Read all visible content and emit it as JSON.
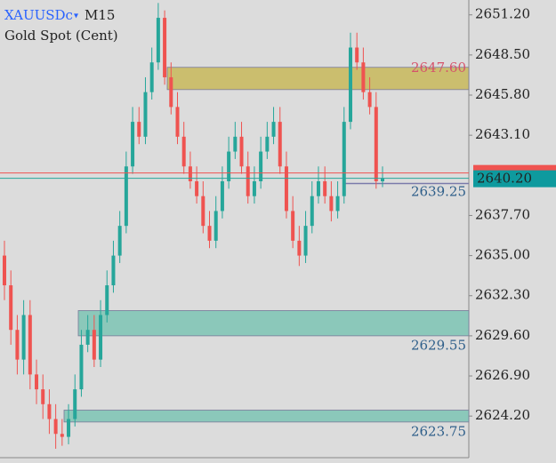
{
  "chart_data": {
    "type": "candlestick",
    "symbol": "XAUUSDc",
    "timeframe": "M15",
    "description": "Gold Spot (Cent)",
    "up_color": "#26a69a",
    "down_color": "#ef5350",
    "ylim": [
      2621.4,
      2652.2
    ],
    "yticks": [
      {
        "value": 2651.2,
        "label": "2651.20"
      },
      {
        "value": 2648.5,
        "label": "2648.50"
      },
      {
        "value": 2645.8,
        "label": "2645.80"
      },
      {
        "value": 2643.1,
        "label": "2643.10"
      },
      {
        "value": 2637.7,
        "label": "2637.70"
      },
      {
        "value": 2635,
        "label": "2635.00"
      },
      {
        "value": 2632.3,
        "label": "2632.30"
      },
      {
        "value": 2629.6,
        "label": "2629.60"
      },
      {
        "value": 2626.9,
        "label": "2626.90"
      },
      {
        "value": 2624.2,
        "label": "2624.20"
      }
    ],
    "open": [
      2635,
      2633,
      2630,
      2628,
      2631,
      2627,
      2626,
      2625,
      2624,
      2623,
      2622.8,
      2624,
      2626,
      2629,
      2630,
      2628,
      2631,
      2633,
      2635,
      2637,
      2641,
      2644,
      2643,
      2646,
      2648,
      2651,
      2647,
      2645,
      2643,
      2641,
      2640,
      2639,
      2637,
      2636,
      2638,
      2640,
      2642,
      2643,
      2641,
      2639,
      2640,
      2642,
      2643,
      2644,
      2641,
      2638,
      2636,
      2635,
      2637,
      2639,
      2640,
      2639,
      2638,
      2639,
      2644,
      2649,
      2648,
      2646,
      2645,
      2640
    ],
    "close": [
      2633,
      2630,
      2628,
      2631,
      2627,
      2626,
      2625,
      2624,
      2623,
      2622.8,
      2624,
      2626,
      2629,
      2630,
      2628,
      2631,
      2633,
      2635,
      2637,
      2641,
      2644,
      2643,
      2646,
      2648,
      2651,
      2647,
      2645,
      2643,
      2641,
      2640,
      2639,
      2637,
      2636,
      2638,
      2640,
      2642,
      2643,
      2641,
      2639,
      2640,
      2642,
      2643,
      2644,
      2641,
      2638,
      2636,
      2635,
      2637,
      2639,
      2640,
      2639,
      2638,
      2639,
      2644,
      2649,
      2648,
      2646,
      2645,
      2640,
      2640.2
    ],
    "high": [
      2636,
      2634,
      2631,
      2632,
      2632,
      2628,
      2627,
      2626,
      2625,
      2624,
      2625,
      2627,
      2630,
      2631,
      2631,
      2632,
      2634,
      2636,
      2638,
      2642,
      2645,
      2645,
      2647,
      2649,
      2652,
      2651.5,
      2648,
      2646,
      2644,
      2642,
      2641,
      2640,
      2638,
      2639,
      2641,
      2643,
      2644,
      2644,
      2642,
      2641,
      2643,
      2644,
      2645,
      2645,
      2642,
      2639,
      2637,
      2638,
      2640,
      2641,
      2641,
      2640,
      2640,
      2645,
      2650,
      2650,
      2649,
      2647,
      2646,
      2641
    ],
    "low": [
      2632,
      2629,
      2627,
      2627,
      2626,
      2625,
      2624,
      2623,
      2622,
      2622.2,
      2622.3,
      2623.5,
      2625.5,
      2628.5,
      2627.5,
      2627.5,
      2630.5,
      2632.5,
      2634.5,
      2636.5,
      2640.5,
      2642.5,
      2642.5,
      2645.5,
      2647.5,
      2646.5,
      2644.5,
      2642.5,
      2640.5,
      2639.5,
      2638.5,
      2636.5,
      2635.5,
      2635.5,
      2637.5,
      2639.5,
      2641.5,
      2640.5,
      2638.5,
      2638.5,
      2639.5,
      2641.5,
      2642.5,
      2640.5,
      2637.5,
      2635.5,
      2634.3,
      2634.5,
      2636.5,
      2638.5,
      2638.5,
      2637.3,
      2637.5,
      2638.5,
      2643.5,
      2647.5,
      2645.5,
      2644.5,
      2639.5,
      2639.6
    ],
    "zones": [
      {
        "high": 2647.67,
        "low": 2646.17,
        "color": "#c8b85a",
        "level": {
          "value": 2647.6,
          "label": "2647.60"
        },
        "label_color": "#d5536b"
      },
      {
        "high": 2631.3,
        "low": 2629.6,
        "color": "#7cc4b4",
        "level": {
          "value": 2629.55,
          "label": "2629.55"
        },
        "label_color": "#2f5f8a"
      },
      {
        "high": 2624.6,
        "low": 2623.8,
        "color": "#7cc4b4",
        "level": {
          "value": 2623.75,
          "label": "2623.75"
        },
        "label_color": "#2f5f8a"
      }
    ],
    "level_line": {
      "value": 2639.25,
      "label": "2639.25"
    },
    "current_price": {
      "value": 2640.2,
      "label": "2640.20"
    }
  }
}
